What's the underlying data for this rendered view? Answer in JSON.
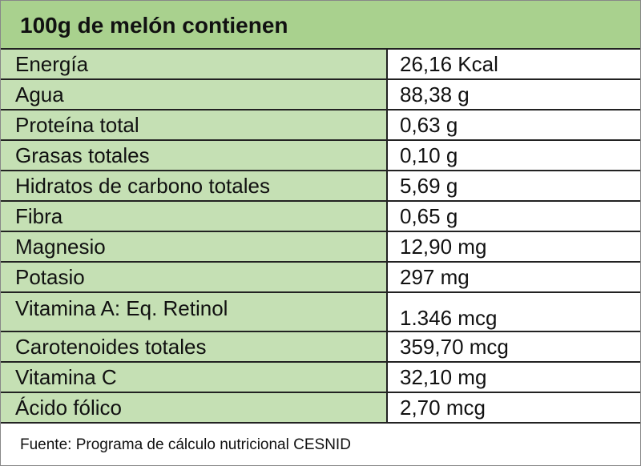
{
  "header": {
    "title": "100g de melón contienen"
  },
  "table": {
    "rows": [
      [
        "Energía",
        "26,16 Kcal"
      ],
      [
        "Agua",
        "88,38 g"
      ],
      [
        "Proteína total",
        "0,63 g"
      ],
      [
        "Grasas totales",
        "0,10 g"
      ],
      [
        "Hidratos de carbono totales",
        "5,69 g"
      ],
      [
        "Fibra",
        "0,65 g"
      ],
      [
        "Magnesio",
        "12,90 mg"
      ],
      [
        "Potasio",
        "297 mg"
      ],
      [
        "Vitamina A: Eq. Retinol",
        "1.346 mcg"
      ],
      [
        "Carotenoides totales",
        "359,70 mcg"
      ],
      [
        "Vitamina C",
        "32,10 mg"
      ],
      [
        "Ácido fólico",
        "2,70 mcg"
      ]
    ]
  },
  "footer": {
    "source": "Fuente: Programa de cálculo nutricional CESNID"
  }
}
